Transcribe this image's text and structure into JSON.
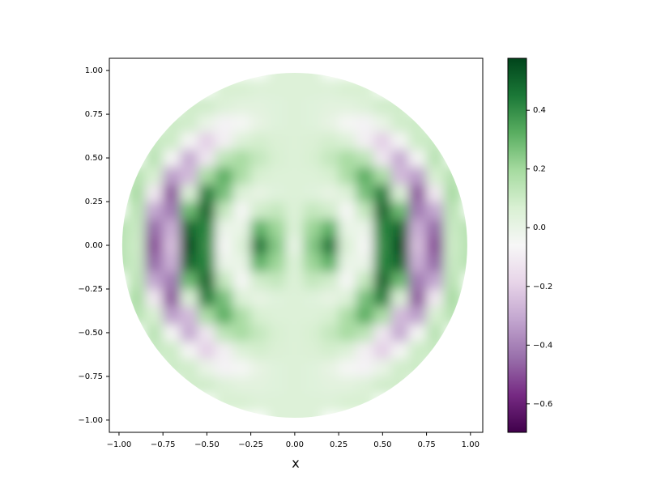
{
  "chart_data": {
    "type": "heatmap",
    "xlabel": "x",
    "x": [
      -1.0,
      -0.9,
      -0.8,
      -0.7,
      -0.6,
      -0.5,
      -0.4,
      -0.3,
      -0.2,
      -0.1,
      0.0,
      0.1,
      0.2,
      0.3,
      0.4,
      0.5,
      0.6,
      0.7,
      0.8,
      0.9,
      1.0
    ],
    "y": [
      -1.0,
      -0.9,
      -0.8,
      -0.7,
      -0.6,
      -0.5,
      -0.4,
      -0.3,
      -0.2,
      -0.1,
      0.0,
      0.1,
      0.2,
      0.3,
      0.4,
      0.5,
      0.6,
      0.7,
      0.8,
      0.9,
      1.0
    ],
    "values": [
      [
        null,
        null,
        null,
        null,
        null,
        null,
        null,
        null,
        null,
        0.05,
        0.05,
        0.05,
        null,
        null,
        null,
        null,
        null,
        null,
        null,
        null,
        null
      ],
      [
        null,
        null,
        null,
        null,
        null,
        null,
        0.07,
        0.07,
        0.05,
        0.05,
        0.05,
        0.05,
        0.05,
        0.07,
        0.07,
        null,
        null,
        null,
        null,
        null,
        null
      ],
      [
        null,
        null,
        null,
        null,
        0.09,
        0.09,
        0.05,
        0.03,
        0.03,
        0.04,
        0.05,
        0.04,
        0.03,
        0.03,
        0.05,
        0.09,
        0.09,
        null,
        null,
        null,
        null
      ],
      [
        null,
        null,
        null,
        0.1,
        0.09,
        0.0,
        -0.08,
        -0.05,
        0.01,
        0.04,
        0.05,
        0.04,
        0.01,
        -0.05,
        -0.08,
        0.0,
        0.09,
        0.1,
        null,
        null,
        null
      ],
      [
        null,
        null,
        0.11,
        0.1,
        -0.05,
        -0.2,
        -0.09,
        0.05,
        0.08,
        0.06,
        0.05,
        0.06,
        0.08,
        0.05,
        -0.09,
        -0.2,
        -0.05,
        0.1,
        0.11,
        null,
        null
      ],
      [
        null,
        null,
        0.15,
        -0.05,
        -0.3,
        -0.12,
        0.14,
        0.19,
        0.12,
        0.07,
        0.05,
        0.07,
        0.12,
        0.19,
        0.14,
        -0.12,
        -0.3,
        -0.05,
        0.15,
        null,
        null
      ],
      [
        null,
        0.15,
        0.07,
        -0.33,
        -0.26,
        0.18,
        0.32,
        0.18,
        0.07,
        0.05,
        0.05,
        0.05,
        0.07,
        0.18,
        0.32,
        0.18,
        -0.26,
        -0.33,
        0.07,
        0.15,
        null
      ],
      [
        null,
        0.19,
        -0.11,
        -0.48,
        0.05,
        0.43,
        0.27,
        0.05,
        0.01,
        0.04,
        0.05,
        0.04,
        0.01,
        0.05,
        0.27,
        0.43,
        0.05,
        -0.48,
        -0.11,
        0.19,
        null
      ],
      [
        null,
        0.14,
        -0.31,
        -0.41,
        0.29,
        0.49,
        0.12,
        -0.05,
        0.09,
        0.12,
        0.05,
        0.12,
        0.09,
        -0.05,
        0.12,
        0.49,
        0.29,
        -0.41,
        -0.31,
        0.14,
        null
      ],
      [
        0.15,
        0.11,
        -0.45,
        -0.29,
        0.49,
        0.42,
        -0.01,
        0.0,
        0.31,
        0.21,
        0.05,
        0.21,
        0.31,
        0.0,
        -0.01,
        0.42,
        0.49,
        -0.29,
        -0.45,
        0.11,
        0.15
      ],
      [
        0.15,
        0.1,
        -0.5,
        -0.25,
        0.55,
        0.4,
        -0.05,
        0.05,
        0.45,
        0.25,
        0.0,
        0.25,
        0.45,
        0.05,
        -0.05,
        0.4,
        0.55,
        -0.25,
        -0.5,
        0.1,
        0.15
      ],
      [
        0.15,
        0.11,
        -0.45,
        -0.29,
        0.49,
        0.42,
        -0.01,
        0.0,
        0.31,
        0.21,
        0.05,
        0.21,
        0.31,
        0.0,
        -0.01,
        0.42,
        0.49,
        -0.29,
        -0.45,
        0.11,
        0.15
      ],
      [
        null,
        0.14,
        -0.31,
        -0.41,
        0.29,
        0.49,
        0.12,
        -0.05,
        0.09,
        0.12,
        0.05,
        0.12,
        0.09,
        -0.05,
        0.12,
        0.49,
        0.29,
        -0.41,
        -0.31,
        0.14,
        null
      ],
      [
        null,
        0.19,
        -0.11,
        -0.48,
        0.05,
        0.43,
        0.27,
        0.05,
        0.01,
        0.04,
        0.05,
        0.04,
        0.01,
        0.05,
        0.27,
        0.43,
        0.05,
        -0.48,
        -0.11,
        0.19,
        null
      ],
      [
        null,
        0.15,
        0.07,
        -0.33,
        -0.26,
        0.18,
        0.32,
        0.18,
        0.07,
        0.05,
        0.05,
        0.05,
        0.07,
        0.18,
        0.32,
        0.18,
        -0.26,
        -0.33,
        0.07,
        0.15,
        null
      ],
      [
        null,
        null,
        0.15,
        -0.05,
        -0.3,
        -0.12,
        0.14,
        0.19,
        0.12,
        0.07,
        0.05,
        0.07,
        0.12,
        0.19,
        0.14,
        -0.12,
        -0.3,
        -0.05,
        0.15,
        null,
        null
      ],
      [
        null,
        null,
        0.11,
        0.1,
        -0.05,
        -0.2,
        -0.09,
        0.05,
        0.08,
        0.06,
        0.05,
        0.06,
        0.08,
        0.05,
        -0.09,
        -0.2,
        -0.05,
        0.1,
        0.11,
        null,
        null
      ],
      [
        null,
        null,
        null,
        0.1,
        0.09,
        0.0,
        -0.08,
        -0.05,
        0.01,
        0.04,
        0.05,
        0.04,
        0.01,
        -0.05,
        -0.08,
        0.0,
        0.09,
        0.1,
        null,
        null,
        null
      ],
      [
        null,
        null,
        null,
        null,
        0.09,
        0.09,
        0.05,
        0.03,
        0.03,
        0.04,
        0.05,
        0.04,
        0.03,
        0.03,
        0.05,
        0.09,
        0.09,
        null,
        null,
        null,
        null
      ],
      [
        null,
        null,
        null,
        null,
        null,
        null,
        0.07,
        0.07,
        0.05,
        0.05,
        0.05,
        0.05,
        0.05,
        0.07,
        0.07,
        null,
        null,
        null,
        null,
        null,
        null
      ],
      [
        null,
        null,
        null,
        null,
        null,
        null,
        null,
        null,
        null,
        0.05,
        0.05,
        0.05,
        null,
        null,
        null,
        null,
        null,
        null,
        null,
        null,
        null
      ]
    ],
    "xlim": [
      -1.055,
      1.07
    ],
    "ylim": [
      -1.07,
      1.07
    ],
    "xticks": [
      {
        "value": -1.0,
        "label": "−1.00"
      },
      {
        "value": -0.75,
        "label": "−0.75"
      },
      {
        "value": -0.5,
        "label": "−0.50"
      },
      {
        "value": -0.25,
        "label": "−0.25"
      },
      {
        "value": 0,
        "label": "0.00"
      },
      {
        "value": 0.25,
        "label": "0.25"
      },
      {
        "value": 0.5,
        "label": "0.50"
      },
      {
        "value": 0.75,
        "label": "0.75"
      },
      {
        "value": 1.0,
        "label": "1.00"
      }
    ],
    "yticks": [
      {
        "value": -1.0,
        "label": "−1.00"
      },
      {
        "value": -0.75,
        "label": "−0.75"
      },
      {
        "value": -0.5,
        "label": "−0.50"
      },
      {
        "value": -0.25,
        "label": "−0.25"
      },
      {
        "value": 0,
        "label": "0.00"
      },
      {
        "value": 0.25,
        "label": "0.25"
      },
      {
        "value": 0.5,
        "label": "0.50"
      },
      {
        "value": 0.75,
        "label": "0.75"
      },
      {
        "value": 1.0,
        "label": "1.00"
      }
    ],
    "clim": [
      -0.697,
      0.577
    ],
    "cticks": [
      {
        "value": -0.6,
        "label": "−0.6"
      },
      {
        "value": -0.4,
        "label": "−0.4"
      },
      {
        "value": -0.2,
        "label": "−0.2"
      },
      {
        "value": 0,
        "label": "0.0"
      },
      0.2,
      0.4
    ],
    "colormap": [
      "#40004b",
      "#762a83",
      "#9970ab",
      "#c2a5cf",
      "#e7d4e8",
      "#f7f7f7",
      "#d9f0d3",
      "#a6dba0",
      "#5aae61",
      "#1b7837",
      "#00441b"
    ]
  }
}
